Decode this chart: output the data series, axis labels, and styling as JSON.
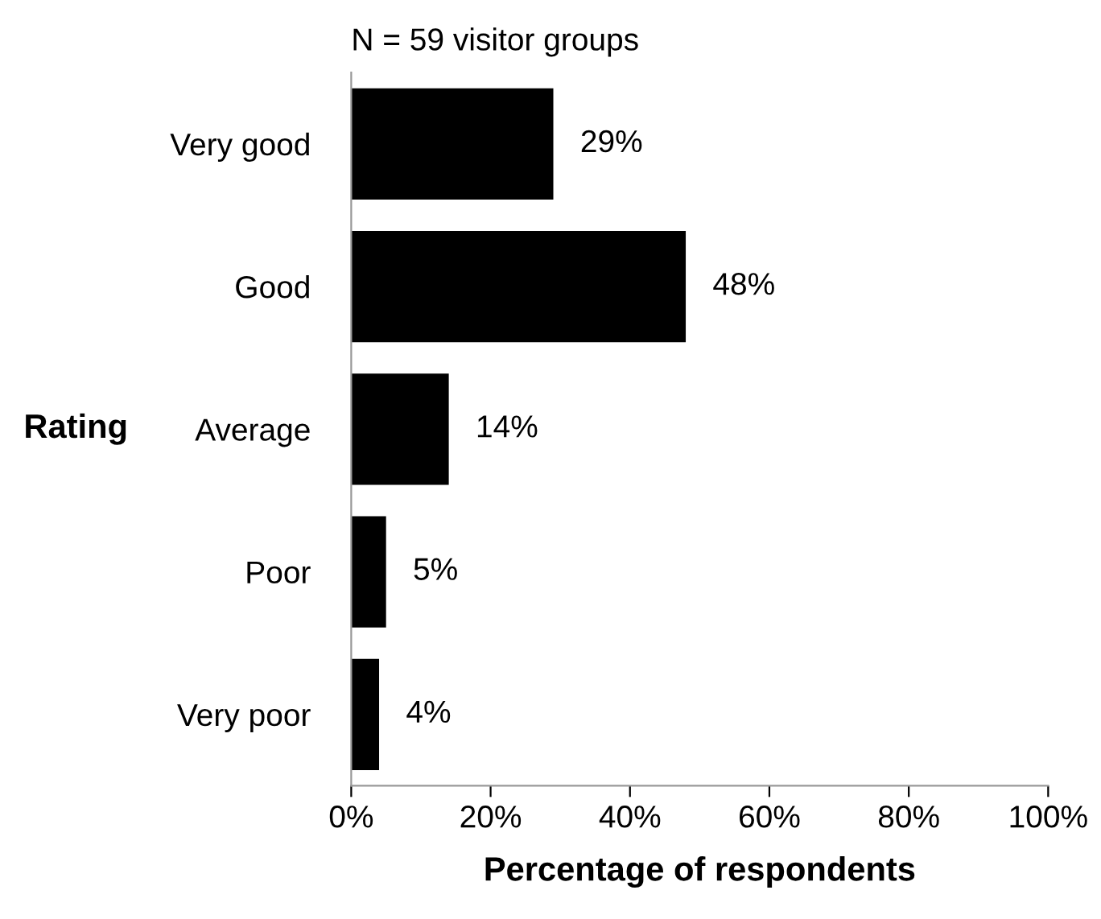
{
  "chart_data": {
    "type": "bar",
    "orientation": "horizontal",
    "title": "N = 59 visitor groups",
    "xlabel": "Percentage of respondents",
    "ylabel": "Rating",
    "categories": [
      "Very good",
      "Good",
      "Average",
      "Poor",
      "Very poor"
    ],
    "values": [
      29,
      48,
      14,
      5,
      4
    ],
    "value_labels": [
      "29%",
      "48%",
      "14%",
      "5%",
      "4%"
    ],
    "color": "#000000",
    "xlim": [
      0,
      100
    ],
    "xticks": [
      {
        "value": 0,
        "label": "0%"
      },
      {
        "value": 20,
        "label": "20%"
      },
      {
        "value": 40,
        "label": "40%"
      },
      {
        "value": 60,
        "label": "60%"
      },
      {
        "value": 80,
        "label": "80%"
      },
      {
        "value": 100,
        "label": "100%"
      }
    ],
    "grid": false
  }
}
